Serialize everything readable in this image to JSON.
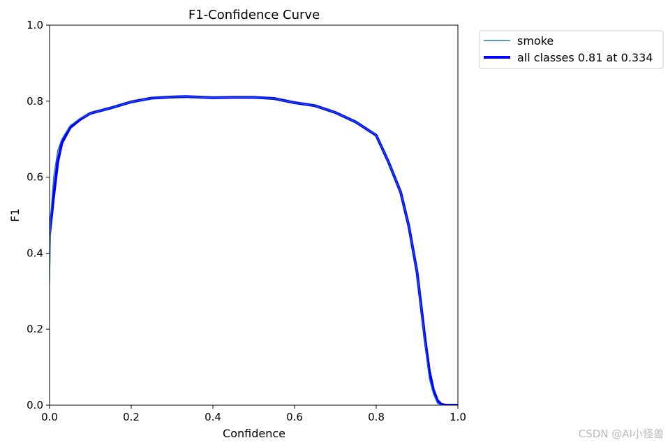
{
  "chart_data": {
    "type": "line",
    "title": "F1-Confidence Curve",
    "xlabel": "Confidence",
    "ylabel": "F1",
    "xlim": [
      0,
      1
    ],
    "ylim": [
      0,
      1
    ],
    "xticks": [
      "0.0",
      "0.2",
      "0.4",
      "0.6",
      "0.8",
      "1.0"
    ],
    "yticks": [
      "0.0",
      "0.2",
      "0.4",
      "0.6",
      "0.8",
      "1.0"
    ],
    "grid": false,
    "legend_position": "outside-top-right",
    "series": [
      {
        "name": "smoke",
        "color": "#1f77b4",
        "x": [
          0.0,
          0.003,
          0.01,
          0.02,
          0.03,
          0.05,
          0.075,
          0.1,
          0.15,
          0.2,
          0.25,
          0.3,
          0.334,
          0.4,
          0.45,
          0.5,
          0.55,
          0.6,
          0.65,
          0.7,
          0.75,
          0.8,
          0.83,
          0.86,
          0.88,
          0.9,
          0.92,
          0.93,
          0.94,
          0.95,
          0.96,
          1.0
        ],
        "y": [
          0.32,
          0.5,
          0.6,
          0.67,
          0.7,
          0.735,
          0.755,
          0.768,
          0.782,
          0.798,
          0.808,
          0.811,
          0.812,
          0.809,
          0.81,
          0.81,
          0.807,
          0.796,
          0.788,
          0.77,
          0.745,
          0.71,
          0.64,
          0.56,
          0.47,
          0.35,
          0.16,
          0.07,
          0.03,
          0.005,
          0.0,
          0.0
        ]
      },
      {
        "name": "all classes 0.81 at 0.334",
        "color": "#0000ff",
        "x": [
          0.0,
          0.01,
          0.02,
          0.03,
          0.05,
          0.075,
          0.1,
          0.15,
          0.2,
          0.25,
          0.3,
          0.334,
          0.4,
          0.45,
          0.5,
          0.55,
          0.6,
          0.65,
          0.7,
          0.75,
          0.8,
          0.83,
          0.86,
          0.88,
          0.9,
          0.92,
          0.93,
          0.94,
          0.95,
          0.96,
          0.97,
          1.0
        ],
        "y": [
          0.45,
          0.55,
          0.64,
          0.69,
          0.73,
          0.752,
          0.768,
          0.782,
          0.798,
          0.808,
          0.811,
          0.812,
          0.809,
          0.81,
          0.81,
          0.807,
          0.796,
          0.788,
          0.77,
          0.745,
          0.71,
          0.64,
          0.56,
          0.47,
          0.35,
          0.17,
          0.09,
          0.04,
          0.012,
          0.002,
          0.0,
          0.0
        ]
      }
    ]
  },
  "watermark": "CSDN @AI小怪兽"
}
